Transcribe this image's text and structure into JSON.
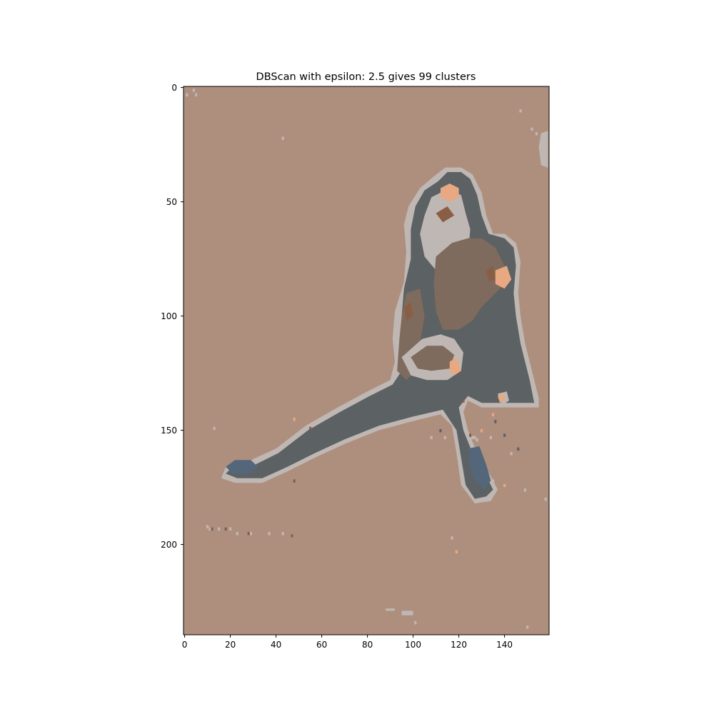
{
  "chart_data": {
    "type": "heatmap",
    "title": "DBScan with epsilon: 2.5 gives 99 clusters",
    "xlabel": "",
    "ylabel": "",
    "image_width": 160,
    "image_height": 240,
    "xlim": [
      -0.5,
      159.5
    ],
    "ylim": [
      239.5,
      -0.5
    ],
    "x_ticks": [
      0,
      20,
      40,
      60,
      80,
      100,
      120,
      140
    ],
    "y_ticks": [
      0,
      50,
      100,
      150,
      200
    ],
    "grid": false,
    "legend": "none",
    "cluster_colors": {
      "background": "#ae8f7e",
      "dark": "#5c6164",
      "edge": "#bfb7b3",
      "brown": "#7e6b5d",
      "skin": "#e8a982",
      "blue": "#54677a",
      "rust": "#8a5e45"
    },
    "regions": [
      {
        "cluster": "edge",
        "outline": [
          [
            109,
            39
          ],
          [
            114,
            35
          ],
          [
            121,
            35
          ],
          [
            126,
            38
          ],
          [
            130,
            46
          ],
          [
            132,
            56
          ],
          [
            135,
            64
          ],
          [
            140,
            64
          ],
          [
            145,
            68
          ],
          [
            147,
            76
          ],
          [
            146,
            90
          ],
          [
            147,
            100
          ],
          [
            149,
            112
          ],
          [
            153,
            128
          ],
          [
            155,
            136
          ],
          [
            155,
            140
          ],
          [
            130,
            140
          ],
          [
            124,
            137
          ],
          [
            122,
            142
          ],
          [
            124,
            150
          ],
          [
            128,
            160
          ],
          [
            134,
            170
          ],
          [
            137,
            176
          ],
          [
            134,
            181
          ],
          [
            127,
            182
          ],
          [
            121,
            174
          ],
          [
            119,
            160
          ],
          [
            117,
            148
          ],
          [
            112,
            143
          ],
          [
            100,
            146
          ],
          [
            85,
            150
          ],
          [
            70,
            156
          ],
          [
            57,
            162
          ],
          [
            45,
            168
          ],
          [
            34,
            173
          ],
          [
            22,
            173
          ],
          [
            16,
            171
          ],
          [
            18,
            166
          ],
          [
            27,
            164
          ],
          [
            40,
            158
          ],
          [
            53,
            148
          ],
          [
            67,
            140
          ],
          [
            80,
            133
          ],
          [
            90,
            128
          ],
          [
            92,
            120
          ],
          [
            91,
            110
          ],
          [
            92,
            98
          ],
          [
            96,
            85
          ],
          [
            97,
            72
          ],
          [
            96,
            60
          ],
          [
            98,
            52
          ],
          [
            103,
            44
          ]
        ]
      },
      {
        "cluster": "dark",
        "outline": [
          [
            111,
            41
          ],
          [
            115,
            37
          ],
          [
            121,
            37
          ],
          [
            125,
            40
          ],
          [
            128,
            47
          ],
          [
            130,
            56
          ],
          [
            133,
            64
          ],
          [
            140,
            66
          ],
          [
            144,
            70
          ],
          [
            145,
            78
          ],
          [
            144,
            90
          ],
          [
            145,
            100
          ],
          [
            147,
            112
          ],
          [
            151,
            128
          ],
          [
            153,
            138
          ],
          [
            130,
            138
          ],
          [
            124,
            135
          ],
          [
            120,
            140
          ],
          [
            122,
            150
          ],
          [
            126,
            160
          ],
          [
            132,
            170
          ],
          [
            135,
            176
          ],
          [
            132,
            179
          ],
          [
            127,
            180
          ],
          [
            123,
            174
          ],
          [
            121,
            162
          ],
          [
            119,
            150
          ],
          [
            113,
            141
          ],
          [
            100,
            144
          ],
          [
            85,
            148
          ],
          [
            70,
            154
          ],
          [
            57,
            160
          ],
          [
            45,
            166
          ],
          [
            34,
            171
          ],
          [
            23,
            171
          ],
          [
            18,
            169
          ],
          [
            20,
            167
          ],
          [
            29,
            166
          ],
          [
            41,
            160
          ],
          [
            54,
            150
          ],
          [
            68,
            142
          ],
          [
            81,
            135
          ],
          [
            91,
            130
          ],
          [
            95,
            124
          ],
          [
            96,
            115
          ],
          [
            95,
            100
          ],
          [
            96,
            88
          ],
          [
            99,
            75
          ],
          [
            99,
            62
          ],
          [
            101,
            52
          ],
          [
            105,
            45
          ]
        ]
      },
      {
        "cluster": "edge",
        "outline": [
          [
            105,
            56
          ],
          [
            108,
            48
          ],
          [
            114,
            45
          ],
          [
            121,
            47
          ],
          [
            123,
            55
          ],
          [
            125,
            62
          ],
          [
            124,
            74
          ],
          [
            118,
            80
          ],
          [
            110,
            80
          ],
          [
            105,
            74
          ],
          [
            103,
            64
          ]
        ]
      },
      {
        "cluster": "brown",
        "outline": [
          [
            110,
            74
          ],
          [
            117,
            68
          ],
          [
            124,
            66
          ],
          [
            130,
            66
          ],
          [
            136,
            70
          ],
          [
            140,
            78
          ],
          [
            140,
            86
          ],
          [
            134,
            92
          ],
          [
            130,
            96
          ],
          [
            126,
            102
          ],
          [
            120,
            106
          ],
          [
            113,
            106
          ],
          [
            110,
            98
          ],
          [
            109,
            86
          ]
        ]
      },
      {
        "cluster": "brown",
        "outline": [
          [
            97,
            90
          ],
          [
            103,
            88
          ],
          [
            105,
            100
          ],
          [
            103,
            112
          ],
          [
            101,
            124
          ],
          [
            97,
            128
          ],
          [
            93,
            124
          ],
          [
            94,
            110
          ],
          [
            95,
            100
          ]
        ]
      },
      {
        "cluster": "edge",
        "outline": [
          [
            95,
            118
          ],
          [
            104,
            110
          ],
          [
            112,
            108
          ],
          [
            118,
            110
          ],
          [
            122,
            116
          ],
          [
            121,
            124
          ],
          [
            115,
            128
          ],
          [
            106,
            128
          ],
          [
            99,
            126
          ]
        ]
      },
      {
        "cluster": "brown",
        "outline": [
          [
            99,
            118
          ],
          [
            106,
            113
          ],
          [
            113,
            113
          ],
          [
            118,
            117
          ],
          [
            116,
            123
          ],
          [
            108,
            124
          ],
          [
            102,
            123
          ]
        ]
      },
      {
        "cluster": "skin",
        "outline": [
          [
            112,
            44
          ],
          [
            116,
            42
          ],
          [
            120,
            44
          ],
          [
            120,
            48
          ],
          [
            116,
            50
          ],
          [
            112,
            48
          ]
        ]
      },
      {
        "cluster": "skin",
        "outline": [
          [
            136,
            80
          ],
          [
            141,
            78
          ],
          [
            143,
            84
          ],
          [
            140,
            88
          ],
          [
            136,
            86
          ]
        ]
      },
      {
        "cluster": "skin",
        "outline": [
          [
            116,
            120
          ],
          [
            119,
            118
          ],
          [
            121,
            124
          ],
          [
            118,
            126
          ],
          [
            116,
            124
          ]
        ]
      },
      {
        "cluster": "rust",
        "outline": [
          [
            110,
            55
          ],
          [
            115,
            52
          ],
          [
            118,
            56
          ],
          [
            113,
            59
          ]
        ]
      },
      {
        "cluster": "rust",
        "outline": [
          [
            132,
            80
          ],
          [
            135,
            78
          ],
          [
            136,
            84
          ],
          [
            133,
            85
          ]
        ]
      },
      {
        "cluster": "rust",
        "outline": [
          [
            96,
            96
          ],
          [
            99,
            94
          ],
          [
            100,
            100
          ],
          [
            97,
            102
          ]
        ]
      },
      {
        "cluster": "blue",
        "outline": [
          [
            124,
            158
          ],
          [
            129,
            157
          ],
          [
            132,
            165
          ],
          [
            134,
            172
          ],
          [
            131,
            176
          ],
          [
            127,
            172
          ],
          [
            125,
            166
          ]
        ]
      },
      {
        "cluster": "blue",
        "outline": [
          [
            18,
            166
          ],
          [
            22,
            163
          ],
          [
            29,
            163
          ],
          [
            32,
            166
          ],
          [
            28,
            169
          ],
          [
            21,
            169
          ]
        ]
      },
      {
        "cluster": "edge",
        "outline": [
          [
            137,
            134
          ],
          [
            141,
            133
          ],
          [
            142,
            137
          ],
          [
            139,
            139
          ]
        ]
      },
      {
        "cluster": "skin",
        "outline": [
          [
            137,
            135
          ],
          [
            140,
            134
          ],
          [
            140,
            137
          ],
          [
            138,
            138
          ]
        ]
      },
      {
        "cluster": "edge",
        "outline": [
          [
            156,
            20
          ],
          [
            159,
            19
          ],
          [
            159,
            35
          ],
          [
            156,
            34
          ],
          [
            155,
            26
          ]
        ]
      },
      {
        "cluster": "edge",
        "outline": [
          [
            88,
            228
          ],
          [
            92,
            228
          ],
          [
            92,
            229
          ],
          [
            88,
            229
          ]
        ]
      },
      {
        "cluster": "edge",
        "outline": [
          [
            95,
            229
          ],
          [
            100,
            229
          ],
          [
            100,
            231
          ],
          [
            95,
            231
          ]
        ]
      }
    ],
    "specks": [
      {
        "cluster": "edge",
        "x": [
          4,
          1,
          5,
          43,
          147,
          152,
          154,
          13,
          10,
          11,
          15,
          20,
          23,
          29,
          37,
          43,
          47,
          108,
          114,
          126,
          134,
          143,
          158,
          135,
          149,
          150,
          101,
          126,
          127,
          128,
          117
        ],
        "y": [
          1,
          3,
          3,
          22,
          10,
          18,
          20,
          149,
          192,
          193,
          193,
          193,
          195,
          195,
          195,
          195,
          196,
          153,
          153,
          153,
          153,
          160,
          180,
          172,
          176,
          236,
          234,
          153,
          153,
          154,
          197
        ]
      },
      {
        "cluster": "rust",
        "x": [
          12,
          18,
          28,
          47,
          125,
          122,
          48,
          55
        ],
        "y": [
          193,
          193,
          195,
          196,
          152,
          137,
          172,
          149
        ]
      },
      {
        "cluster": "skin",
        "x": [
          130,
          119,
          135,
          140,
          48
        ],
        "y": [
          150,
          203,
          143,
          174,
          145
        ]
      },
      {
        "cluster": "dark",
        "x": [
          112,
          136,
          140,
          146
        ],
        "y": [
          150,
          146,
          152,
          158
        ]
      }
    ]
  }
}
